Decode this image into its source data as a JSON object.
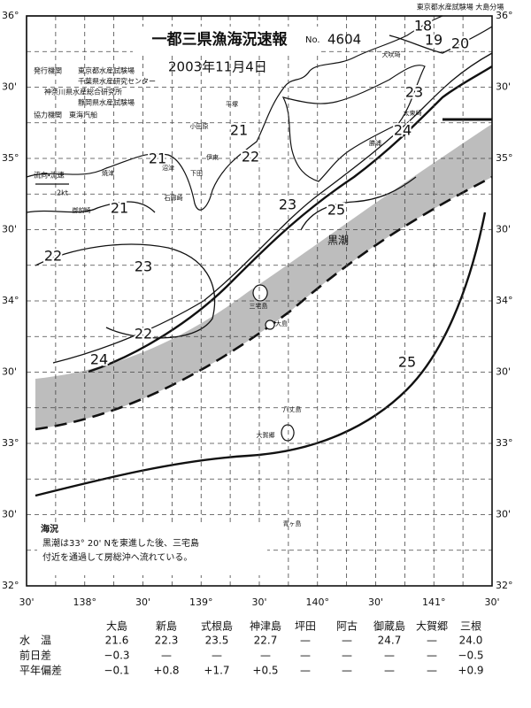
{
  "header": {
    "office": "東京都水産試験場 大島分場",
    "title": "一都三県漁海況速報",
    "number_prefix": "No.",
    "number": "4604",
    "date": "2003年11月4日",
    "issuer_label": "発行機関",
    "issuers": [
      "東京都水産試験場",
      "千葉県水産研究センター",
      "神奈川県水産総合研究所",
      "静岡県水産試験場"
    ],
    "cooperation": "協力機関　東海汽船"
  },
  "legend": {
    "label": "流向・流速",
    "speed": "2kt"
  },
  "map": {
    "lat_labels": [
      "36°",
      "30'",
      "35°",
      "30'",
      "34°",
      "30'",
      "33°",
      "30'",
      "32°"
    ],
    "lon_labels": [
      "30'",
      "138°",
      "30'",
      "139°",
      "30'",
      "140°",
      "30'",
      "141°",
      "30'"
    ],
    "isotherm_labels": [
      "18",
      "19",
      "20",
      "23",
      "24",
      "21",
      "22",
      "21",
      "23",
      "25",
      "21",
      "22",
      "23",
      "22",
      "24",
      "25"
    ],
    "place_labels": [
      "犬吠埼",
      "太東崎",
      "勝浦",
      "平塚",
      "小田原",
      "伊東",
      "下田",
      "石廊崎",
      "御前崎",
      "焼津",
      "沼津",
      "大島",
      "三宅島",
      "八丈島",
      "大賀郷",
      "青ヶ島",
      "黒潮"
    ]
  },
  "notes": {
    "heading": "海況",
    "lines": [
      "黒潮は33° 20' Nを東進した後、三宅島",
      "付近を通過して房総沖へ流れている。"
    ]
  },
  "table": {
    "columns": [
      "大島",
      "新島",
      "式根島",
      "神津島",
      "坪田",
      "阿古",
      "御蔵島",
      "大賀郷",
      "三根"
    ],
    "rows": [
      {
        "label": "水　温",
        "cells": [
          "21.6",
          "22.3",
          "23.5",
          "22.7",
          "—",
          "—",
          "24.7",
          "—",
          "24.0"
        ]
      },
      {
        "label": "前日差",
        "cells": [
          "−0.3",
          "—",
          "—",
          "—",
          "—",
          "—",
          "—",
          "—",
          "−0.5"
        ]
      },
      {
        "label": "平年偏差",
        "cells": [
          "−0.1",
          "+0.8",
          "+1.7",
          "+0.5",
          "—",
          "—",
          "—",
          "—",
          "+0.9"
        ]
      }
    ]
  }
}
